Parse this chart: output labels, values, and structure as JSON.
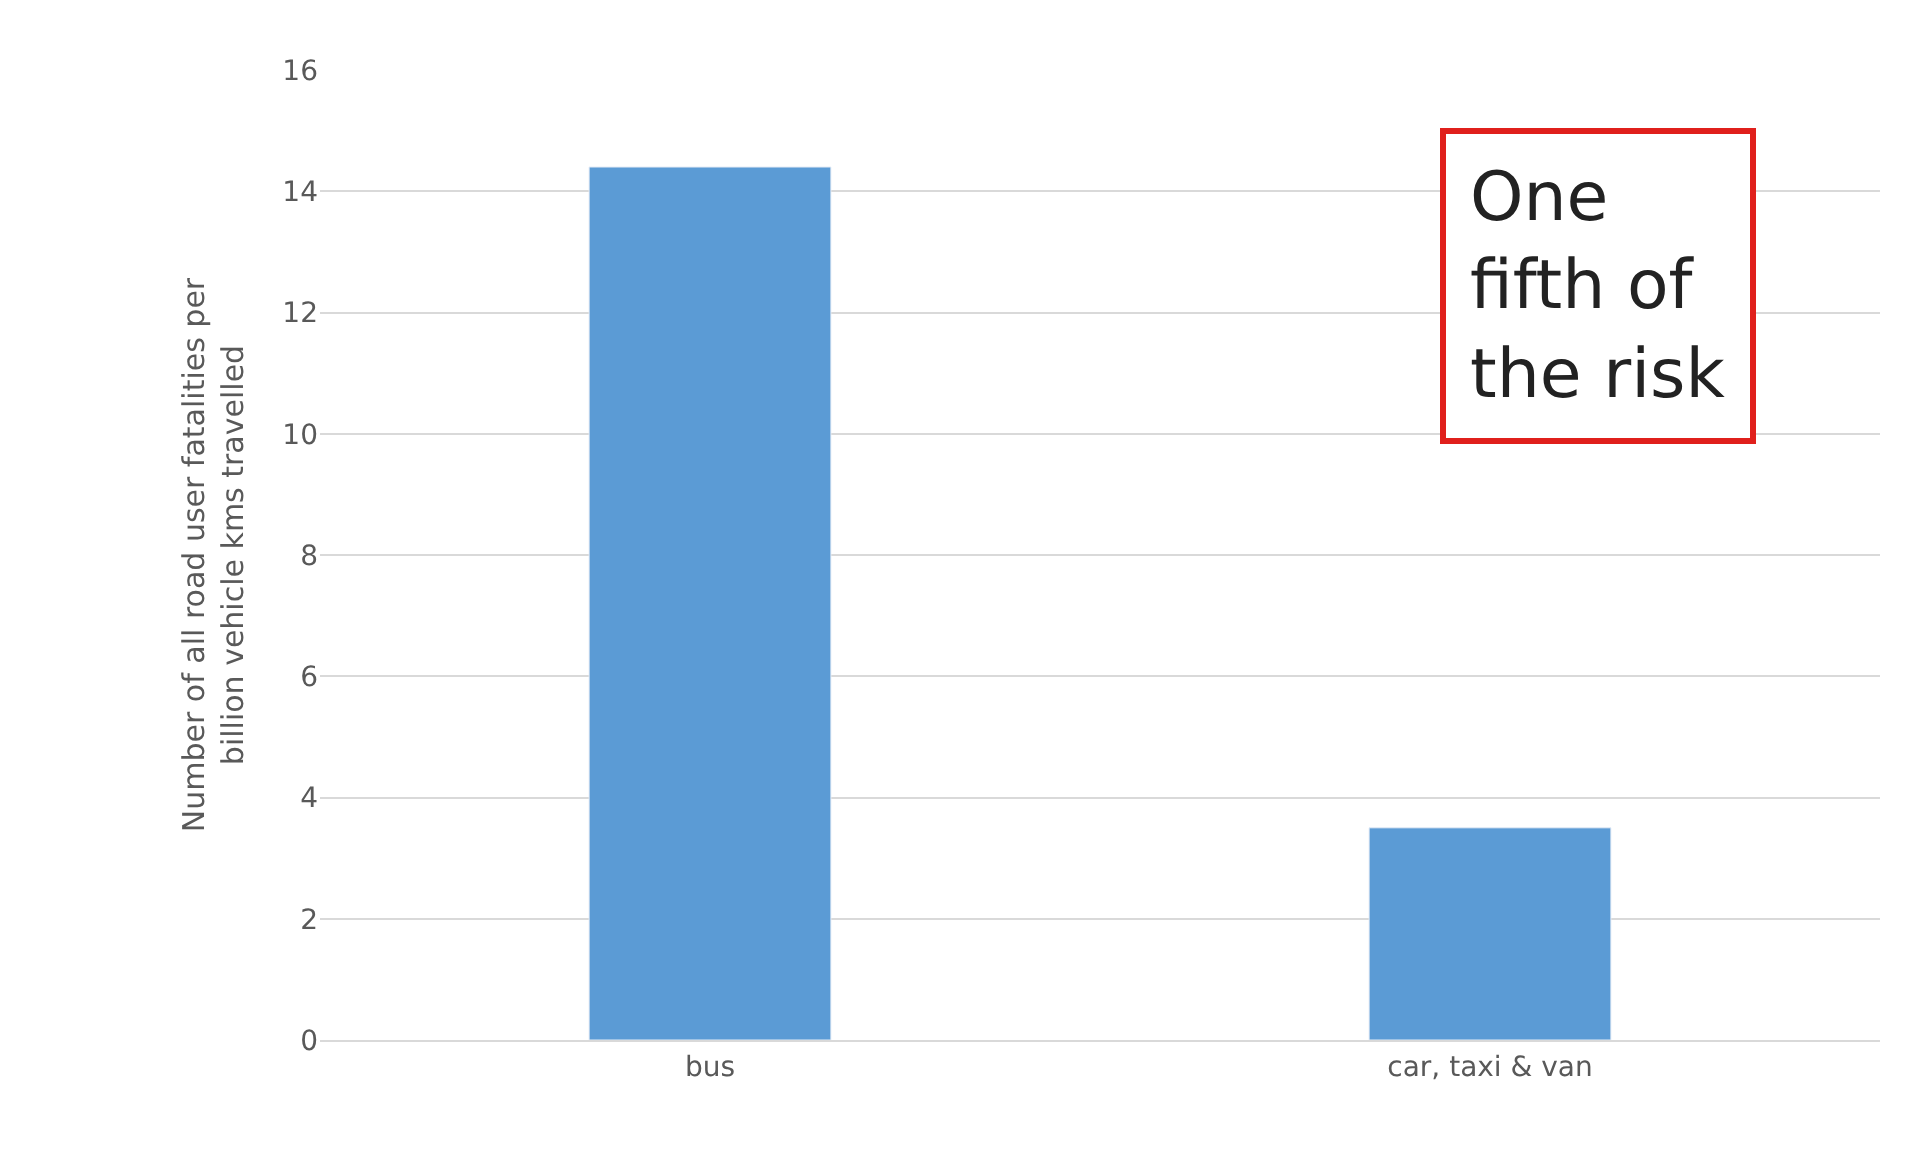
{
  "chart_data": {
    "type": "bar",
    "ylabel": "Number of all road user fatalities per billion vehicle kms travelled",
    "categories": [
      "bus",
      "car, taxi & van"
    ],
    "values": [
      14.4,
      3.5
    ],
    "color": "#5b9bd5",
    "ylim": [
      0,
      16
    ],
    "yticks": [
      0,
      2,
      4,
      6,
      8,
      10,
      12,
      14,
      16
    ],
    "grid": "y",
    "legend": false,
    "annotations": [
      "One fifth of the risk"
    ]
  }
}
